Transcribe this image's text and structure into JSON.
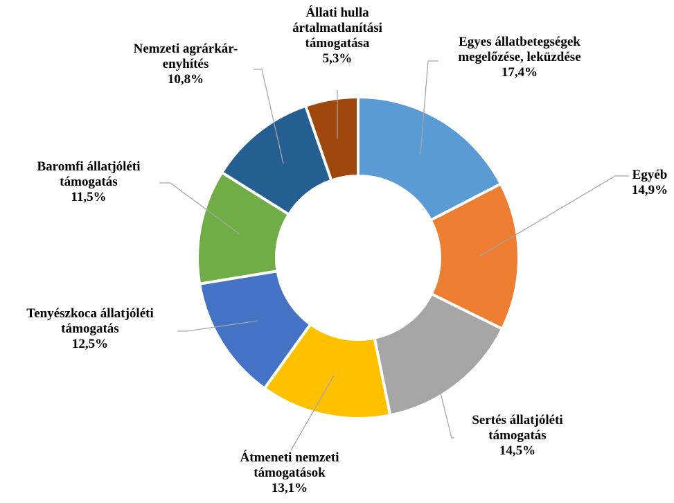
{
  "chart_data": {
    "type": "pie",
    "style": "doughnut",
    "slices": [
      {
        "label_lines": [
          "Egyes állatbetegségek",
          "megelőzése, leküzdése"
        ],
        "value": 17.4,
        "value_text": "17,4%",
        "color": "#5B9BD5"
      },
      {
        "label_lines": [
          "Egyéb"
        ],
        "value": 14.9,
        "value_text": "14,9%",
        "color": "#ED7D31"
      },
      {
        "label_lines": [
          "Sertés állatjóléti",
          "támogatás"
        ],
        "value": 14.5,
        "value_text": "14,5%",
        "color": "#A5A5A5"
      },
      {
        "label_lines": [
          "Átmeneti nemzeti",
          "támogatások"
        ],
        "value": 13.1,
        "value_text": "13,1%",
        "color": "#FFC000"
      },
      {
        "label_lines": [
          "Tenyészkoca állatjóléti",
          "támogatás"
        ],
        "value": 12.5,
        "value_text": "12,5%",
        "color": "#4472C4"
      },
      {
        "label_lines": [
          "Baromfi állatjóléti",
          "támogatás"
        ],
        "value": 11.5,
        "value_text": "11,5%",
        "color": "#70AD47"
      },
      {
        "label_lines": [
          "Nemzeti agrárkár-",
          "enyhítés"
        ],
        "value": 10.8,
        "value_text": "10,8%",
        "color": "#255E91"
      },
      {
        "label_lines": [
          "Állati hulla",
          "ártalmatlanítási",
          "támogatása"
        ],
        "value": 5.3,
        "value_text": "5,3%",
        "color": "#9E480E"
      }
    ]
  }
}
